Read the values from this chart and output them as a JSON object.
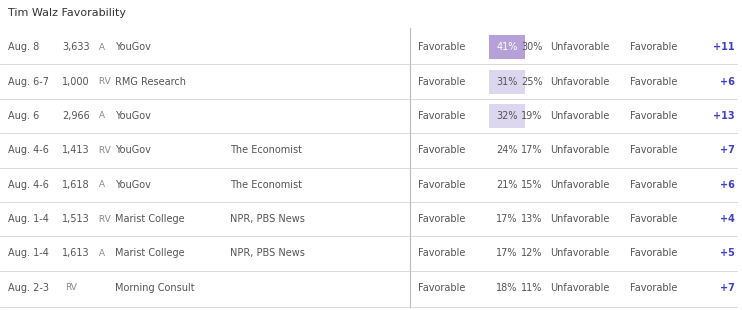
{
  "title": "Tim Walz Favorability",
  "rows": [
    {
      "date": "Aug. 8",
      "sample_num": "3,633",
      "sample_type": " A",
      "pollster": "YouGov",
      "sponsor": "",
      "fav_pct": "41%",
      "unfav_pct": "30%",
      "net": "+11",
      "highlight": 2
    },
    {
      "date": "Aug. 6-7",
      "sample_num": "1,000",
      "sample_type": " RV",
      "pollster": "RMG Research",
      "sponsor": "",
      "fav_pct": "31%",
      "unfav_pct": "25%",
      "net": "+6",
      "highlight": 1
    },
    {
      "date": "Aug. 6",
      "sample_num": "2,966",
      "sample_type": " A",
      "pollster": "YouGov",
      "sponsor": "",
      "fav_pct": "32%",
      "unfav_pct": "19%",
      "net": "+13",
      "highlight": 1
    },
    {
      "date": "Aug. 4-6",
      "sample_num": "1,413",
      "sample_type": " RV",
      "pollster": "YouGov",
      "sponsor": "The Economist",
      "fav_pct": "24%",
      "unfav_pct": "17%",
      "net": "+7",
      "highlight": 0
    },
    {
      "date": "Aug. 4-6",
      "sample_num": "1,618",
      "sample_type": " A",
      "pollster": "YouGov",
      "sponsor": "The Economist",
      "fav_pct": "21%",
      "unfav_pct": "15%",
      "net": "+6",
      "highlight": 0
    },
    {
      "date": "Aug. 1-4",
      "sample_num": "1,513",
      "sample_type": " RV",
      "pollster": "Marist College",
      "sponsor": "NPR, PBS News",
      "fav_pct": "17%",
      "unfav_pct": "13%",
      "net": "+4",
      "highlight": 0
    },
    {
      "date": "Aug. 1-4",
      "sample_num": "1,613",
      "sample_type": " A",
      "pollster": "Marist College",
      "sponsor": "NPR, PBS News",
      "fav_pct": "17%",
      "unfav_pct": "12%",
      "net": "+5",
      "highlight": 0
    },
    {
      "date": "Aug. 2-3",
      "sample_num": "",
      "sample_type": "RV",
      "pollster": "Morning Consult",
      "sponsor": "",
      "fav_pct": "18%",
      "unfav_pct": "11%",
      "net": "+7",
      "highlight": 0
    }
  ],
  "bg_color": "#ffffff",
  "title_color": "#333333",
  "text_color": "#555555",
  "sample_type_color": "#888888",
  "highlight2_color": "#b5a0d8",
  "highlight1_color": "#ddd6ef",
  "net_color": "#4040c0",
  "divider_color": "#cccccc",
  "vert_divider_color": "#bbbbbb"
}
